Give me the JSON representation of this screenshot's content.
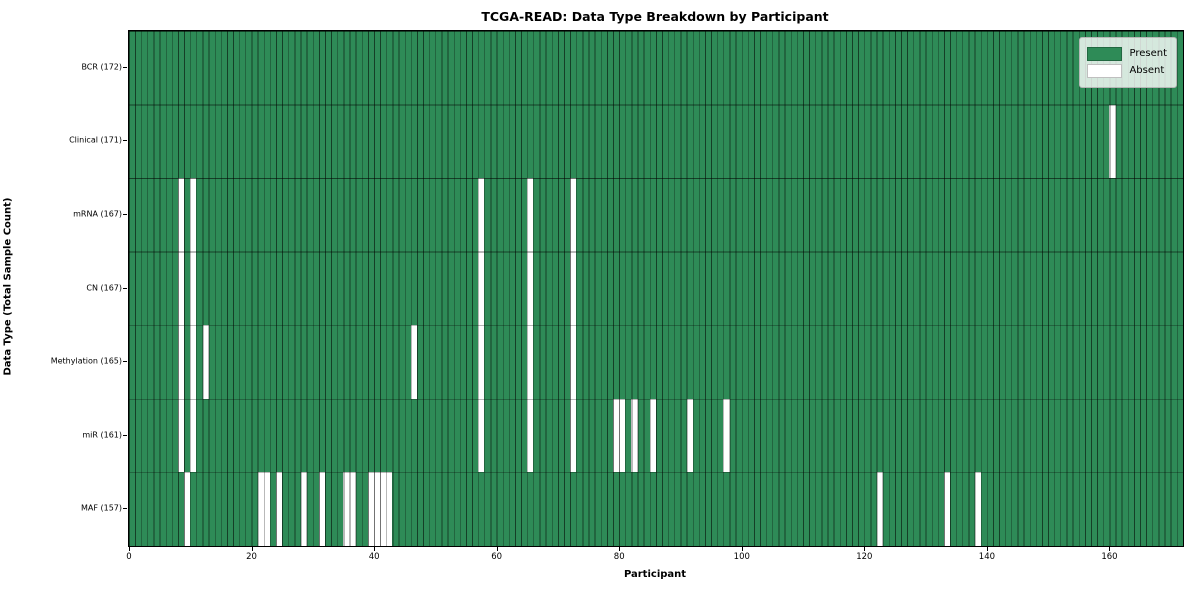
{
  "title": "TCGA-READ: Data Type Breakdown by Participant",
  "axes": {
    "x_label": "Participant",
    "y_label": "Data Type (Total Sample Count)"
  },
  "legend": {
    "present_label": "Present",
    "absent_label": "Absent"
  },
  "colors": {
    "present": "#2e8b57",
    "absent": "#ffffff",
    "grid_line": "rgba(0,0,0,0.55)",
    "legend_bg": "rgba(255,255,255,0.8)"
  },
  "chart_data": {
    "type": "heatmap",
    "title": "TCGA-READ: Data Type Breakdown by Participant",
    "xlabel": "Participant",
    "ylabel": "Data Type (Total Sample Count)",
    "x_ticks": [
      0,
      20,
      40,
      60,
      80,
      100,
      120,
      140,
      160
    ],
    "x_range": [
      0,
      172
    ],
    "n_participants": 172,
    "grid": true,
    "legend_position": "upper right",
    "legend_entries": [
      {
        "label": "Present",
        "color": "#2e8b57"
      },
      {
        "label": "Absent",
        "color": "#ffffff"
      }
    ],
    "rows": [
      {
        "label": "BCR (172)",
        "data_type": "BCR",
        "present_count": 172,
        "absent_participants": []
      },
      {
        "label": "Clinical (171)",
        "data_type": "Clinical",
        "present_count": 171,
        "absent_participants": [
          160
        ]
      },
      {
        "label": "mRNA (167)",
        "data_type": "mRNA",
        "present_count": 167,
        "absent_participants": [
          8,
          10,
          57,
          65,
          72
        ]
      },
      {
        "label": "CN (167)",
        "data_type": "CN",
        "present_count": 167,
        "absent_participants": [
          8,
          10,
          57,
          65,
          72
        ]
      },
      {
        "label": "Methylation (165)",
        "data_type": "Methylation",
        "present_count": 165,
        "absent_participants": [
          8,
          10,
          12,
          46,
          57,
          65,
          72
        ]
      },
      {
        "label": "miR (161)",
        "data_type": "miR",
        "present_count": 161,
        "absent_participants": [
          8,
          10,
          57,
          65,
          72,
          79,
          80,
          82,
          85,
          91,
          97
        ]
      },
      {
        "label": "MAF (157)",
        "data_type": "MAF",
        "present_count": 157,
        "absent_participants": [
          9,
          21,
          22,
          24,
          28,
          31,
          35,
          36,
          39,
          40,
          41,
          42,
          122,
          133,
          138
        ]
      }
    ]
  }
}
